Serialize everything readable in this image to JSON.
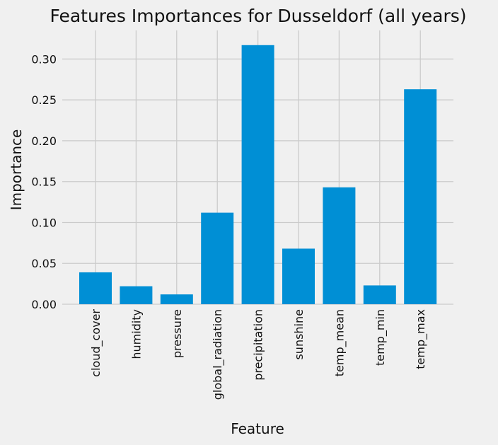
{
  "chart_data": {
    "type": "bar",
    "title": "Features Importances for Dusseldorf (all years)",
    "xlabel": "Feature",
    "ylabel": "Importance",
    "categories": [
      "cloud_cover",
      "humidity",
      "pressure",
      "global_radiation",
      "precipitation",
      "sunshine",
      "temp_mean",
      "temp_min",
      "temp_max"
    ],
    "values": [
      0.039,
      0.022,
      0.012,
      0.112,
      0.317,
      0.068,
      0.143,
      0.023,
      0.263
    ],
    "ylim": [
      0,
      0.335
    ],
    "yticks": [
      "0.00",
      "0.05",
      "0.10",
      "0.15",
      "0.20",
      "0.25",
      "0.30"
    ],
    "grid": true,
    "bar_color": "#008fd5",
    "background_color": "#f0f0f0",
    "grid_color": "#cbcbcb"
  }
}
